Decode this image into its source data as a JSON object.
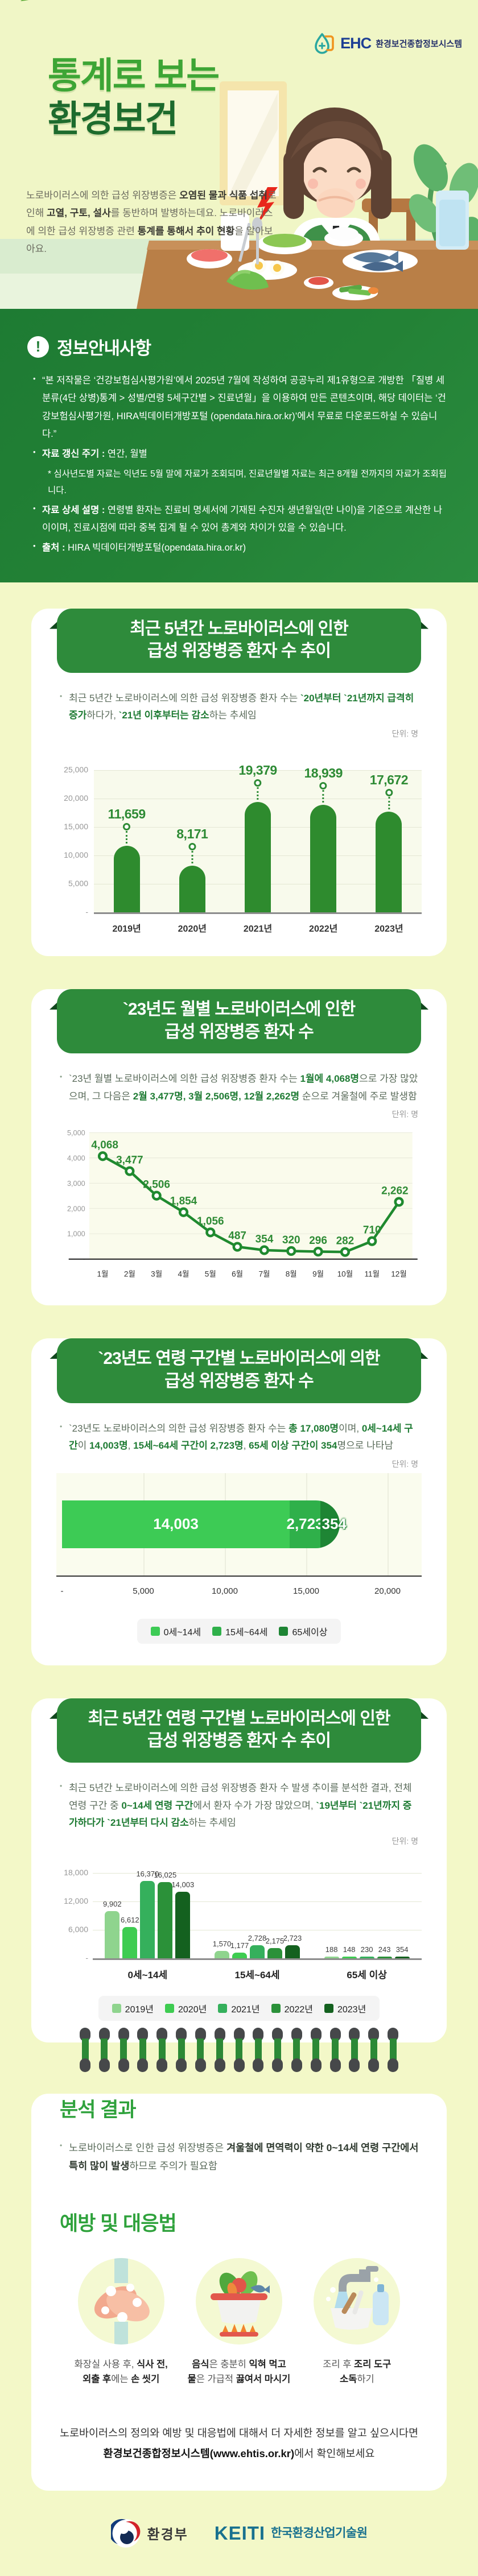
{
  "header": {
    "logo": {
      "abbr": "EHC",
      "name": "환경보건종합정보시스템"
    },
    "title_line1": "통계로 보는",
    "title_line2": "환경보건",
    "intro": [
      {
        "t": "노로바이러스에 의한 급성 위장병증은 "
      },
      {
        "t": "오염된 물과 식품 섭취",
        "b": 1
      },
      {
        "t": "로 인해 "
      },
      {
        "t": "고열, 구토, 설사",
        "b": 1
      },
      {
        "t": "를 동반하며 발병하는데요. 노로바이러스에 의한 급성 위장병증 관련 "
      },
      {
        "t": "통계를 통해서",
        "b": 1
      },
      {
        "t": " "
      },
      {
        "t": "추이 현황",
        "b": 1
      },
      {
        "t": "을 알아보아요."
      }
    ]
  },
  "info": {
    "title": "정보안내사항",
    "item1": [
      {
        "t": "“본 저작물은 ‘건강보험심사평가원’에서 2025년 7월에 작성하여 공공누리 제1유형으로 개방한 「질병 세분류(4단 상병)통계 > 성별/연령 5세구간별 > 진료년월」을 이용하여 만든 콘텐츠이며,  해당 데이터는 ‘건강보험심사평가원, HIRA빅데이터개방포털 (opendata.hira.or.kr)’에서 무료로  다운로드하실 수 있습니다.”"
      }
    ],
    "item2": [
      {
        "t": "자료 갱신 주기 : ",
        "b": 1
      },
      {
        "t": "연간, 월별"
      }
    ],
    "item2_note": "* 심사년도별 자료는 익년도 5월 말에 자료가 조회되며, 진료년월별 자료는 최근 8개월 전까지의 자료가 조회됩니다.",
    "item3": [
      {
        "t": "자료 상세 설명 : ",
        "b": 1
      },
      {
        "t": "연령별 환자는 진료비 명세서에 기재된 수진자 생년월일(만 나이)을 기준으로 계산한 나이이며, 진료시점에 따라 중복 집계 될 수 있어 총계와 차이가 있을 수 있습니다."
      }
    ],
    "item4": [
      {
        "t": "출처 : ",
        "b": 1
      },
      {
        "t": "HIRA 빅데이터개방포털(opendata.hira.or.kr)"
      }
    ]
  },
  "sections": [
    {
      "title1": "최근 5년간 노로바이러스에 인한",
      "title2": "급성 위장병증 환자 수 추이",
      "unit": "단위: 명",
      "desc": [
        {
          "t": "최근 5년간 노로바이러스에 의한 급성 위장병증 환자 수는 "
        },
        {
          "t": "`20년부터 `21년까지 급격히 증가",
          "b": 1
        },
        {
          "t": "하다가,  "
        },
        {
          "t": "`21년 이후부터는 감소",
          "b": 1
        },
        {
          "t": "하는 추세임"
        }
      ]
    },
    {
      "title1": "`23년도 월별 노로바이러스에 인한",
      "title2": "급성 위장병증 환자 수",
      "unit": "단위: 명",
      "desc": [
        {
          "t": "`23년 월별 노로바이러스에 의한 급성 위장병증 환자 수는 "
        },
        {
          "t": "1월에 4,068명",
          "b": 1
        },
        {
          "t": "으로 가장 많았으며, 그 다음은 "
        },
        {
          "t": "2월 3,477명, 3월 2,506명, 12월 2,262명",
          "b": 1
        },
        {
          "t": " 순으로 겨울철에 주로 발생함"
        }
      ]
    },
    {
      "title1": "`23년도 연령 구간별 노로바이러스에 의한",
      "title2": "급성 위장병증 환자 수",
      "unit": "단위: 명",
      "desc": [
        {
          "t": "`23년도 노로바이러스의 의한 급성 위장병증 환자 수는 "
        },
        {
          "t": "총 17,080명",
          "b": 1
        },
        {
          "t": "이며, "
        },
        {
          "t": "0세~14세 구간",
          "b": 1
        },
        {
          "t": "이 "
        },
        {
          "t": "14,003명",
          "b": 1
        },
        {
          "t": ", "
        },
        {
          "t": "15세~64세 구간이 2,723명",
          "b": 1
        },
        {
          "t": ", "
        },
        {
          "t": "65세 이상 구간이 354",
          "b": 1
        },
        {
          "t": "명으로 나타남"
        }
      ]
    },
    {
      "title1": "최근 5년간 연령 구간별 노로바이러스에 인한",
      "title2": "급성 위장병증 환자 수 추이",
      "unit": "단위: 명",
      "desc": [
        {
          "t": "최근 5년간 노로바이러스에 의한 급성 위장병증 환자 수 발생 추이를 분석한 결과, 전체 연령 구간 중 "
        },
        {
          "t": "0~14세 연령 구간",
          "b": 1
        },
        {
          "t": "에서 환자 수가 가장 많았으며, "
        },
        {
          "t": "`19년부터 `21년까지 증가하다가",
          "b": 1
        },
        {
          "t": " "
        },
        {
          "t": "`21년부터 다시 감소",
          "b": 1
        },
        {
          "t": "하는 추세임"
        }
      ]
    }
  ],
  "chart_data": [
    {
      "type": "bar",
      "title": "최근 5년간 노로바이러스에 인한 급성 위장병증 환자 수 추이",
      "unit": "명",
      "categories": [
        "2019년",
        "2020년",
        "2021년",
        "2022년",
        "2023년"
      ],
      "values": [
        11659,
        8171,
        19379,
        18939,
        17672
      ],
      "ylim": [
        0,
        25000
      ],
      "yticks": [
        "25,000",
        "20,000",
        "15,000",
        "10,000",
        "5,000",
        "-"
      ],
      "bar_color": "#2E8B2E",
      "label_color": "#2E8B35"
    },
    {
      "type": "line",
      "title": "`23년도 월별 노로바이러스에 인한 급성 위장병증 환자 수",
      "unit": "명",
      "categories": [
        "1월",
        "2월",
        "3월",
        "4월",
        "5월",
        "6월",
        "7월",
        "8월",
        "9월",
        "10월",
        "11월",
        "12월"
      ],
      "values": [
        4068,
        3477,
        2506,
        1854,
        1056,
        487,
        354,
        320,
        296,
        282,
        710,
        2262
      ],
      "ylim": [
        0,
        5000
      ],
      "yticks": [
        "5,000",
        "4,000",
        "3,000",
        "2,000",
        "1,000",
        "-"
      ],
      "line_color": "#1F8A2F"
    },
    {
      "type": "stacked-bar",
      "title": "`23년도 연령 구간별 노로바이러스에 의한 급성 위장병증 환자 수",
      "unit": "명",
      "total": 17080,
      "segments": [
        {
          "label": "0세~14세",
          "value": 14003,
          "color": "#3DCB55"
        },
        {
          "label": "15세~64세",
          "value": 2723,
          "color": "#2FB04A"
        },
        {
          "label": "65세이상",
          "value": 354,
          "color": "#1E8534"
        }
      ],
      "xlim": [
        0,
        20000
      ],
      "xticks": [
        "-",
        "5,000",
        "10,000",
        "15,000",
        "20,000"
      ]
    },
    {
      "type": "grouped-bar",
      "title": "최근 5년간 연령 구간별 노로바이러스에 인한 급성 위장병증 환자 수 추이",
      "unit": "명",
      "groups": [
        "0세~14세",
        "15세~64세",
        "65세 이상"
      ],
      "series": [
        {
          "name": "2019년",
          "color": "#8FD48E",
          "values": [
            9902,
            1570,
            188
          ]
        },
        {
          "name": "2020년",
          "color": "#3ECC51",
          "values": [
            6612,
            1177,
            148
          ]
        },
        {
          "name": "2021년",
          "color": "#35B05C",
          "values": [
            16370,
            2728,
            230
          ]
        },
        {
          "name": "2022년",
          "color": "#2B9139",
          "values": [
            16025,
            2175,
            243
          ]
        },
        {
          "name": "2023년",
          "color": "#14611F",
          "values": [
            14003,
            2723,
            354
          ]
        }
      ],
      "ylim": [
        0,
        18000
      ],
      "yticks": [
        "18,000",
        "12,000",
        "6,000",
        "-"
      ]
    }
  ],
  "analysis": {
    "title": "분석 결과",
    "text": [
      {
        "t": "노로바이러스로 인한 급성 위장병증은 "
      },
      {
        "t": "겨울철에 면역력이 약한 0~14세 연령 구간에서 특히 많이 발생",
        "b": 1
      },
      {
        "t": "하므로 주의가 필요함"
      }
    ]
  },
  "prevention": {
    "title": "예방 및 대응법",
    "items": [
      {
        "icon": "hand-washing-icon",
        "caption": [
          {
            "t": "화장실 사용 후, "
          },
          {
            "t": "식사 전,",
            "b": 1
          },
          {
            "br": 1
          },
          {
            "t": "외출 후",
            "b": 1
          },
          {
            "t": "에는 "
          },
          {
            "t": "손 씻기",
            "b": 1
          }
        ]
      },
      {
        "icon": "boiling-pot-icon",
        "caption": [
          {
            "t": "음식",
            "b": 1
          },
          {
            "t": "은 충분히 "
          },
          {
            "t": "익혀 먹고",
            "b": 1
          },
          {
            "br": 1
          },
          {
            "t": "물",
            "b": 1
          },
          {
            "t": "은 가급적 "
          },
          {
            "t": "끓여서 마시기",
            "b": 1
          }
        ]
      },
      {
        "icon": "disinfect-tools-icon",
        "caption": [
          {
            "t": "조리 후 "
          },
          {
            "t": "조리 도구",
            "b": 1
          },
          {
            "br": 1
          },
          {
            "t": "소독",
            "b": 1
          },
          {
            "t": "하기"
          }
        ]
      }
    ],
    "more": [
      {
        "t": "노로바이러스의 정의와 예방 및 대응법에 대해서 더 자세한 정보를 알고 싶으시다면"
      },
      {
        "br": 1
      },
      {
        "t": "환경보건종합정보시스템(www.ehtis.or.kr)",
        "b": 1
      },
      {
        "t": "에서 확인해보세요"
      }
    ]
  },
  "footer": {
    "moe": "환경부",
    "keiti_abbr": "KEITI",
    "keiti_name": "한국환경산업기술원"
  }
}
